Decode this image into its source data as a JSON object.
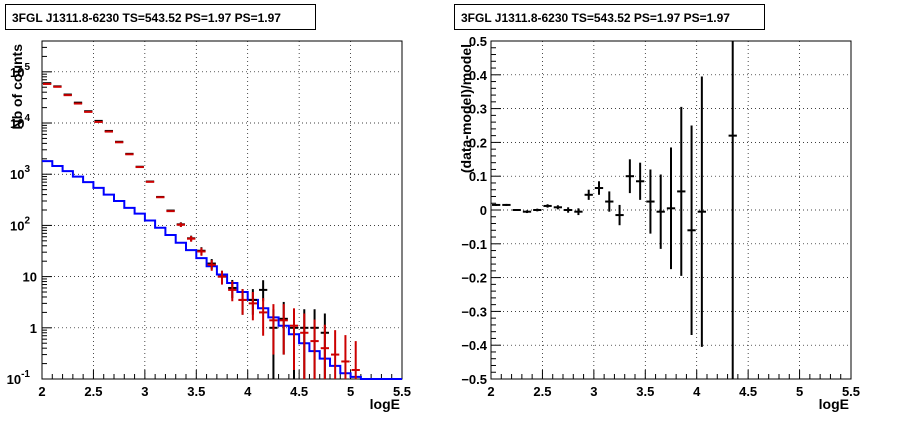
{
  "chart_data": [
    {
      "type": "line",
      "title": "3FGL J1311.8-6230 TS=543.52 PS=1.97 PS=1.97",
      "xlabel": "logE",
      "ylabel": "Nb of counts",
      "xlim": [
        2,
        5.5
      ],
      "ylim": [
        0.1,
        400000
      ],
      "yscale": "log",
      "grid": true,
      "x_ticks": [
        "2",
        "2.5",
        "3",
        "3.5",
        "4",
        "4.5",
        "5",
        "5.5"
      ],
      "y_ticks": [
        {
          "value": 0.1,
          "base": "10",
          "exp": "-1"
        },
        {
          "value": 1,
          "base": "1",
          "exp": ""
        },
        {
          "value": 10,
          "base": "10",
          "exp": ""
        },
        {
          "value": 100,
          "base": "10",
          "exp": "2"
        },
        {
          "value": 1000,
          "base": "10",
          "exp": "3"
        },
        {
          "value": 10000,
          "base": "10",
          "exp": "4"
        },
        {
          "value": 100000,
          "base": "10",
          "exp": "5"
        }
      ],
      "series": [
        {
          "style": "step",
          "color": "#0000ff",
          "bin_edges": [
            2.0,
            2.1,
            2.2,
            2.3,
            2.4,
            2.5,
            2.6,
            2.7,
            2.8,
            2.9,
            3.0,
            3.1,
            3.2,
            3.3,
            3.4,
            3.5,
            3.6,
            3.7,
            3.8,
            3.9,
            4.0,
            4.1,
            4.2,
            4.3,
            4.4,
            4.5,
            4.6,
            4.7,
            4.8,
            4.9,
            5.0,
            5.1,
            5.2,
            5.3,
            5.4,
            5.5
          ],
          "values": [
            1800,
            1450,
            1150,
            900,
            700,
            540,
            400,
            300,
            220,
            170,
            125,
            90,
            65,
            46,
            33,
            23,
            16,
            11,
            7.5,
            5,
            3.5,
            2.4,
            1.6,
            1.1,
            0.75,
            0.5,
            0.35,
            0.25,
            0.18,
            0.13,
            0.11,
            0.1,
            0.1,
            0.1,
            0.1
          ]
        },
        {
          "style": "errorbar",
          "color": "#000000",
          "x": [
            2.05,
            2.15,
            2.25,
            2.35,
            2.45,
            2.55,
            2.65,
            2.75,
            2.85,
            2.95,
            3.05,
            3.15,
            3.25,
            3.35,
            3.45,
            3.55,
            3.65,
            3.75,
            3.85,
            3.95,
            4.05,
            4.15,
            4.25,
            4.35,
            4.45,
            4.55,
            4.65,
            4.75
          ],
          "y": [
            60000,
            52000,
            36000,
            25000,
            17000,
            11000,
            7000,
            4300,
            2500,
            1400,
            720,
            360,
            195,
            105,
            56,
            32,
            18,
            10,
            6,
            3.5,
            3.5,
            5.5,
            1,
            1.5,
            1,
            1,
            1,
            0.8
          ],
          "err_low": [
            0,
            0,
            0,
            0,
            0,
            0,
            0,
            0,
            0,
            0,
            0,
            0,
            0,
            10,
            7,
            5.5,
            4,
            3,
            2.2,
            1.7,
            1.7,
            2.2,
            0.9,
            1.2,
            0.9,
            0.9,
            0.9,
            0.75
          ],
          "err_high": [
            0,
            0,
            0,
            0,
            0,
            0,
            0,
            0,
            0,
            0,
            0,
            0,
            0,
            10,
            7,
            5.5,
            4,
            3,
            2.6,
            2.2,
            2.2,
            3.0,
            1.3,
            1.7,
            1.3,
            1.3,
            1.3,
            1.1
          ]
        },
        {
          "style": "errorbar",
          "color": "#cc0000",
          "x": [
            2.05,
            2.15,
            2.25,
            2.35,
            2.45,
            2.55,
            2.65,
            2.75,
            2.85,
            2.95,
            3.05,
            3.15,
            3.25,
            3.35,
            3.45,
            3.55,
            3.65,
            3.75,
            3.85,
            3.95,
            4.05,
            4.15,
            4.25,
            4.35,
            4.45,
            4.55,
            4.65,
            4.75,
            4.85,
            4.95,
            5.05
          ],
          "y": [
            58000,
            51000,
            35000,
            24000,
            16500,
            10500,
            6800,
            4200,
            2450,
            1380,
            710,
            355,
            190,
            103,
            55,
            31,
            17,
            10,
            5.5,
            3.5,
            3,
            2,
            1.4,
            1.4,
            1.1,
            0.8,
            0.55,
            0.4,
            0.3,
            0.22,
            0.15
          ],
          "err_low": [
            0,
            0,
            0,
            0,
            0,
            0,
            0,
            0,
            0,
            0,
            0,
            0,
            0,
            10,
            7,
            5.5,
            4,
            3,
            2.2,
            1.7,
            1.6,
            1.3,
            1.1,
            1.1,
            0.95,
            0.75,
            0.52,
            0.38,
            0.28,
            0.2,
            0.14
          ],
          "err_high": [
            0,
            0,
            0,
            0,
            0,
            0,
            0,
            0,
            0,
            0,
            0,
            0,
            0,
            10,
            7,
            5.5,
            4,
            3,
            2.6,
            2.2,
            2.0,
            1.8,
            1.5,
            1.5,
            1.3,
            1.1,
            0.9,
            0.75,
            0.6,
            0.5,
            0.4
          ]
        }
      ]
    },
    {
      "type": "scatter",
      "title": "3FGL J1311.8-6230 TS=543.52 PS=1.97 PS=1.97",
      "xlabel": "logE",
      "ylabel": "(data-model)/model",
      "xlim": [
        2,
        5.5
      ],
      "ylim": [
        -0.5,
        0.5
      ],
      "grid": true,
      "x_ticks": [
        "2",
        "2.5",
        "3",
        "3.5",
        "4",
        "4.5",
        "5",
        "5.5"
      ],
      "y_ticks": [
        "−0.5",
        "−0.4",
        "−0.3",
        "−0.2",
        "−0.1",
        "0",
        "0.1",
        "0.2",
        "0.3",
        "0.4",
        "0.5"
      ],
      "series": [
        {
          "style": "errorbar",
          "color": "#000000",
          "x": [
            2.05,
            2.15,
            2.25,
            2.35,
            2.45,
            2.55,
            2.65,
            2.75,
            2.85,
            2.95,
            3.05,
            3.15,
            3.25,
            3.35,
            3.45,
            3.55,
            3.65,
            3.75,
            3.85,
            3.95,
            4.05,
            4.35
          ],
          "y": [
            0.015,
            0.015,
            0.0,
            -0.005,
            0.0,
            0.012,
            0.008,
            0.0,
            -0.005,
            0.045,
            0.065,
            0.025,
            -0.015,
            0.1,
            0.085,
            0.025,
            -0.005,
            0.005,
            0.055,
            -0.06,
            -0.005,
            0.22
          ],
          "err": [
            0.003,
            0.003,
            0.003,
            0.004,
            0.004,
            0.005,
            0.006,
            0.008,
            0.01,
            0.015,
            0.02,
            0.03,
            0.03,
            0.05,
            0.055,
            0.095,
            0.11,
            0.18,
            0.25,
            0.31,
            0.4,
            0.75
          ]
        }
      ]
    }
  ]
}
